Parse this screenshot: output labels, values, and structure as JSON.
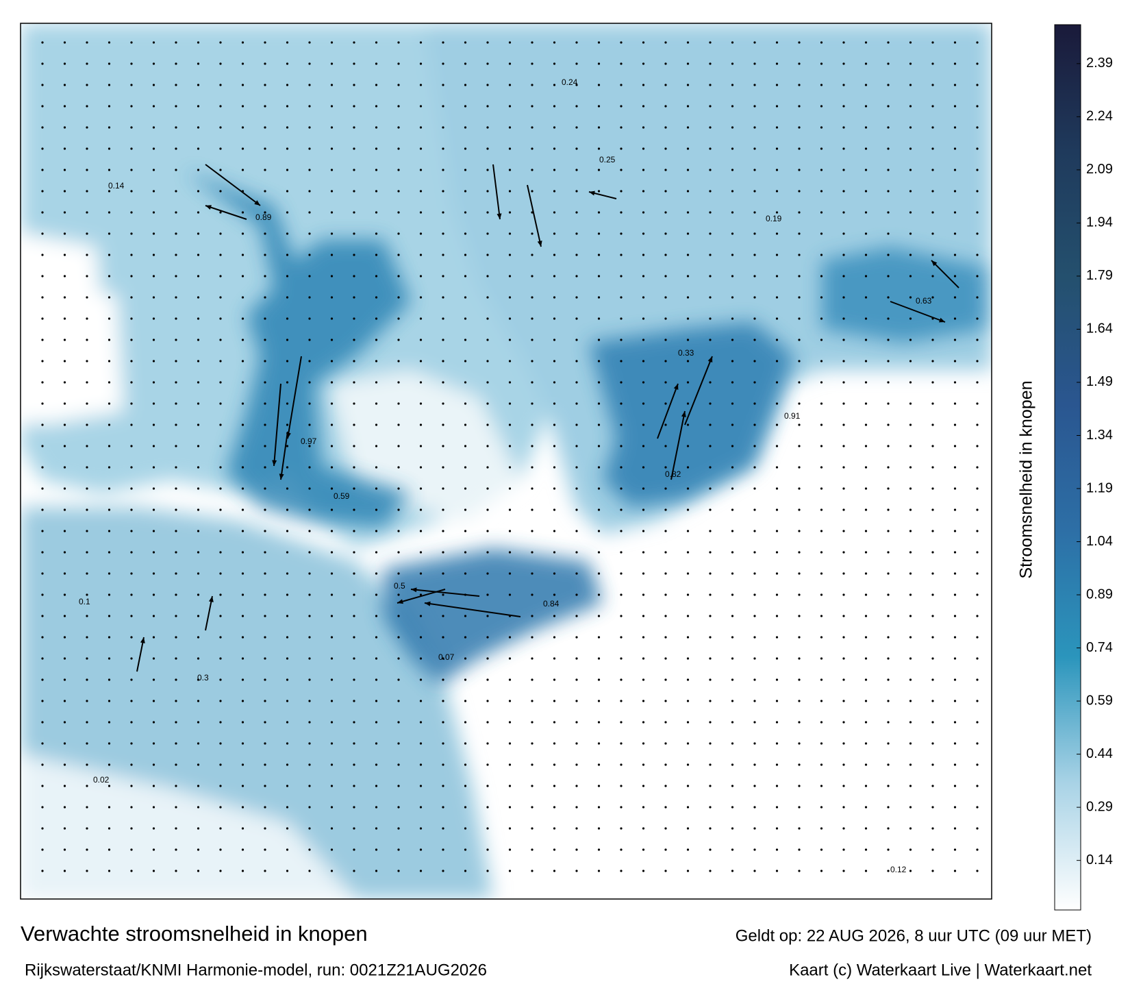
{
  "header": {
    "title": "Verwachte stroomsnelheid in knopen",
    "subtitle": "Rijkswaterstaat/KNMI Harmonie-model, run: 0021Z21AUG2026",
    "valid": "Geldt op: 22 AUG 2026, 8 uur UTC (09 uur MET)",
    "credit": "Kaart (c) Waterkaart Live | Waterkaart.net"
  },
  "colorbar": {
    "label": "Stroomsnelheid in knopen",
    "lim": [
      0,
      2.5
    ],
    "ticks": [
      0.14,
      0.29,
      0.44,
      0.59,
      0.74,
      0.89,
      1.04,
      1.19,
      1.34,
      1.49,
      1.64,
      1.79,
      1.94,
      2.09,
      2.24,
      2.39
    ],
    "colors": [
      "#ffffff",
      "#a9d3e6",
      "#2b95bc",
      "#2d6fa6",
      "#2a5690",
      "#24506e",
      "#1f3a5c",
      "#1a1a3a"
    ]
  },
  "map": {
    "labels": [
      0.89,
      0.97,
      0.84,
      0.91,
      0.63,
      0.33,
      0.24,
      0.3,
      0.1,
      0.02,
      0.19,
      0.5,
      0.59,
      0.82,
      0.25,
      0.14,
      0.07,
      0.12
    ]
  }
}
